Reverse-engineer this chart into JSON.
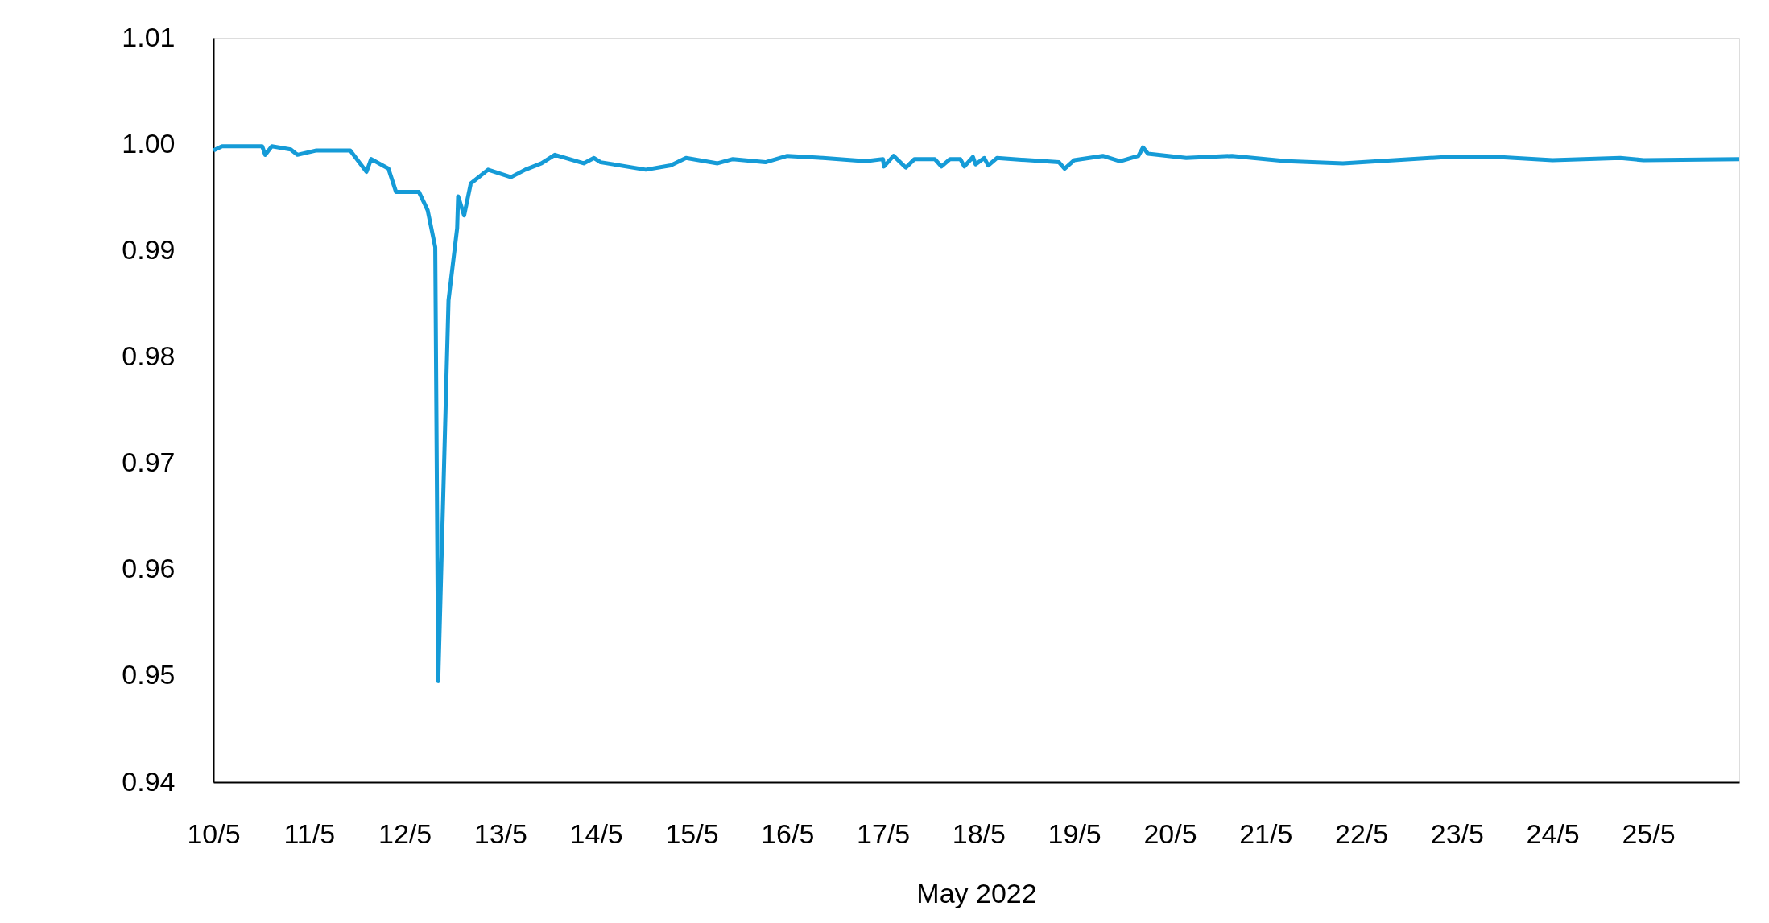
{
  "chart_data": {
    "type": "line",
    "xlabel": "May 2022",
    "color": "#159bd7",
    "grid": false,
    "legend": false,
    "marker": "none",
    "line_style": "solid",
    "x": [
      "2022-05-10T00:00",
      "2022-05-10T02:10",
      "2022-05-10T12:15",
      "2022-05-10T13:00",
      "2022-05-10T14:40",
      "2022-05-10T19:25",
      "2022-05-10T21:05",
      "2022-05-11T01:40",
      "2022-05-11T10:20",
      "2022-05-11T14:25",
      "2022-05-11T15:35",
      "2022-05-11T19:55",
      "2022-05-11T21:50",
      "2022-05-12T03:35",
      "2022-05-12T05:45",
      "2022-05-12T07:40",
      "2022-05-12T08:25",
      "2022-05-12T11:00",
      "2022-05-12T13:10",
      "2022-05-12T13:25",
      "2022-05-12T14:55",
      "2022-05-12T16:35",
      "2022-05-12T20:55",
      "2022-05-13T02:40",
      "2022-05-13T06:15",
      "2022-05-13T10:20",
      "2022-05-13T13:40",
      "2022-05-13T20:55",
      "2022-05-13T23:30",
      "2022-05-14T01:10",
      "2022-05-14T12:30",
      "2022-05-14T18:45",
      "2022-05-14T22:35",
      "2022-05-15T06:30",
      "2022-05-15T10:20",
      "2022-05-15T18:30",
      "2022-05-16T00:00",
      "2022-05-16T08:55",
      "2022-05-16T19:40",
      "2022-05-17T00:00",
      "2022-05-17T00:15",
      "2022-05-17T02:40",
      "2022-05-17T05:45",
      "2022-05-17T07:55",
      "2022-05-17T13:00",
      "2022-05-17T14:40",
      "2022-05-17T16:50",
      "2022-05-17T19:25",
      "2022-05-17T20:25",
      "2022-05-17T22:35",
      "2022-05-17T23:15",
      "2022-05-18T01:25",
      "2022-05-18T02:25",
      "2022-05-18T04:35",
      "2022-05-18T20:10",
      "2022-05-18T21:35",
      "2022-05-19T00:00",
      "2022-05-19T07:10",
      "2022-05-19T11:30",
      "2022-05-19T16:05",
      "2022-05-19T17:15",
      "2022-05-19T18:30",
      "2022-05-20T04:05",
      "2022-05-20T15:35",
      "2022-05-21T05:15",
      "2022-05-21T19:25",
      "2022-05-22T21:35",
      "2022-05-23T10:05",
      "2022-05-24T00:00",
      "2022-05-24T17:00",
      "2022-05-24T22:50",
      "2022-05-25T22:50"
    ],
    "values": [
      0.9994,
      0.9998,
      0.9998,
      0.999,
      0.9998,
      0.9995,
      0.999,
      0.9994,
      0.9994,
      0.9974,
      0.9986,
      0.9977,
      0.9955,
      0.9955,
      0.9938,
      0.9903,
      0.9495,
      0.9853,
      0.9921,
      0.9951,
      0.9933,
      0.9963,
      0.9976,
      0.9969,
      0.9976,
      0.9982,
      0.999,
      0.9982,
      0.9987,
      0.9983,
      0.9976,
      0.998,
      0.9987,
      0.9982,
      0.9986,
      0.9983,
      0.9989,
      0.9987,
      0.9984,
      0.9986,
      0.9979,
      0.9989,
      0.9978,
      0.9986,
      0.9986,
      0.9979,
      0.9986,
      0.9986,
      0.9979,
      0.9988,
      0.9981,
      0.9987,
      0.998,
      0.9987,
      0.9983,
      0.9977,
      0.9985,
      0.9989,
      0.9984,
      0.9989,
      0.9997,
      0.9991,
      0.9987,
      0.9989,
      0.9984,
      0.9982,
      0.9988,
      0.9988,
      0.9985,
      0.9987,
      0.9985,
      0.9986
    ],
    "xlim": [
      "2022-05-10T00:00",
      "2022-05-25T22:50"
    ],
    "xticks": [
      {
        "value": "2022-05-10",
        "label": "10/5"
      },
      {
        "value": "2022-05-11",
        "label": "11/5"
      },
      {
        "value": "2022-05-12",
        "label": "12/5"
      },
      {
        "value": "2022-05-13",
        "label": "13/5"
      },
      {
        "value": "2022-05-14",
        "label": "14/5"
      },
      {
        "value": "2022-05-15",
        "label": "15/5"
      },
      {
        "value": "2022-05-16",
        "label": "16/5"
      },
      {
        "value": "2022-05-17",
        "label": "17/5"
      },
      {
        "value": "2022-05-18",
        "label": "18/5"
      },
      {
        "value": "2022-05-19",
        "label": "19/5"
      },
      {
        "value": "2022-05-20",
        "label": "20/5"
      },
      {
        "value": "2022-05-21",
        "label": "21/5"
      },
      {
        "value": "2022-05-22",
        "label": "22/5"
      },
      {
        "value": "2022-05-23",
        "label": "23/5"
      },
      {
        "value": "2022-05-24",
        "label": "24/5"
      },
      {
        "value": "2022-05-25",
        "label": "25/5"
      }
    ],
    "ylim": [
      0.94,
      1.01
    ],
    "yticks": [
      0.94,
      0.95,
      0.96,
      0.97,
      0.98,
      0.99,
      {
        "value": 1,
        "label": "1.00"
      },
      1.01
    ]
  }
}
